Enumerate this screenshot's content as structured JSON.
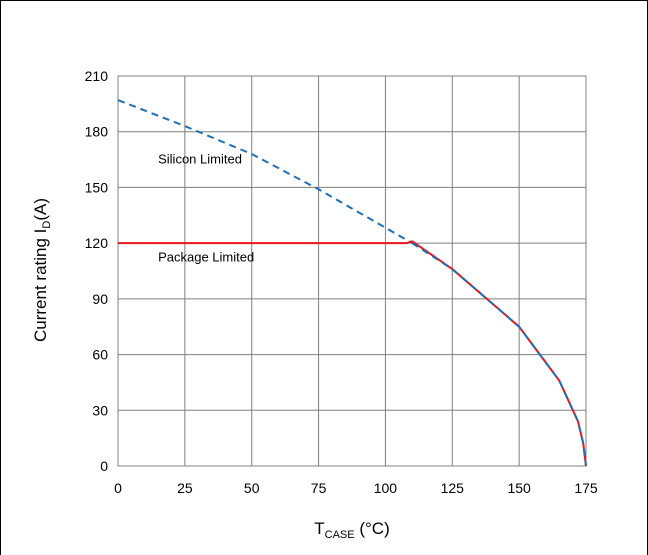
{
  "chart_data": {
    "type": "line",
    "xlabel": "T",
    "xlabel_sub": "CASE",
    "xlabel_unit": " (°C)",
    "ylabel": "Current rating I",
    "ylabel_sub": "D",
    "ylabel_unit": "(A)",
    "xlim": [
      0,
      175
    ],
    "ylim": [
      0,
      210
    ],
    "x_ticks": [
      0,
      25,
      50,
      75,
      100,
      125,
      150,
      175
    ],
    "y_ticks": [
      0,
      30,
      60,
      90,
      120,
      150,
      180,
      210
    ],
    "grid": true,
    "series": [
      {
        "name": "Silicon Limited",
        "color": "#1f6fb4",
        "style": "dashed",
        "x": [
          0,
          25,
          50,
          75,
          110
        ],
        "y": [
          197,
          183,
          168,
          149,
          120
        ]
      },
      {
        "name": "Package Limited",
        "color": "#e8171b",
        "style": "solid",
        "x": [
          0,
          108,
          110,
          125,
          150,
          165,
          172,
          174,
          175
        ],
        "y": [
          120,
          120,
          121,
          106,
          75,
          46,
          24,
          12,
          0
        ]
      },
      {
        "name": "",
        "color": "#1f6fb4",
        "style": "dashed",
        "x": [
          110,
          125,
          150,
          165,
          172,
          174,
          175
        ],
        "y": [
          120,
          106,
          75,
          46,
          24,
          12,
          0
        ]
      }
    ],
    "annotations": [
      {
        "text": "Silicon Limited",
        "x": 15,
        "y": 163
      },
      {
        "text": "Package Limited",
        "x": 15,
        "y": 110
      }
    ]
  }
}
